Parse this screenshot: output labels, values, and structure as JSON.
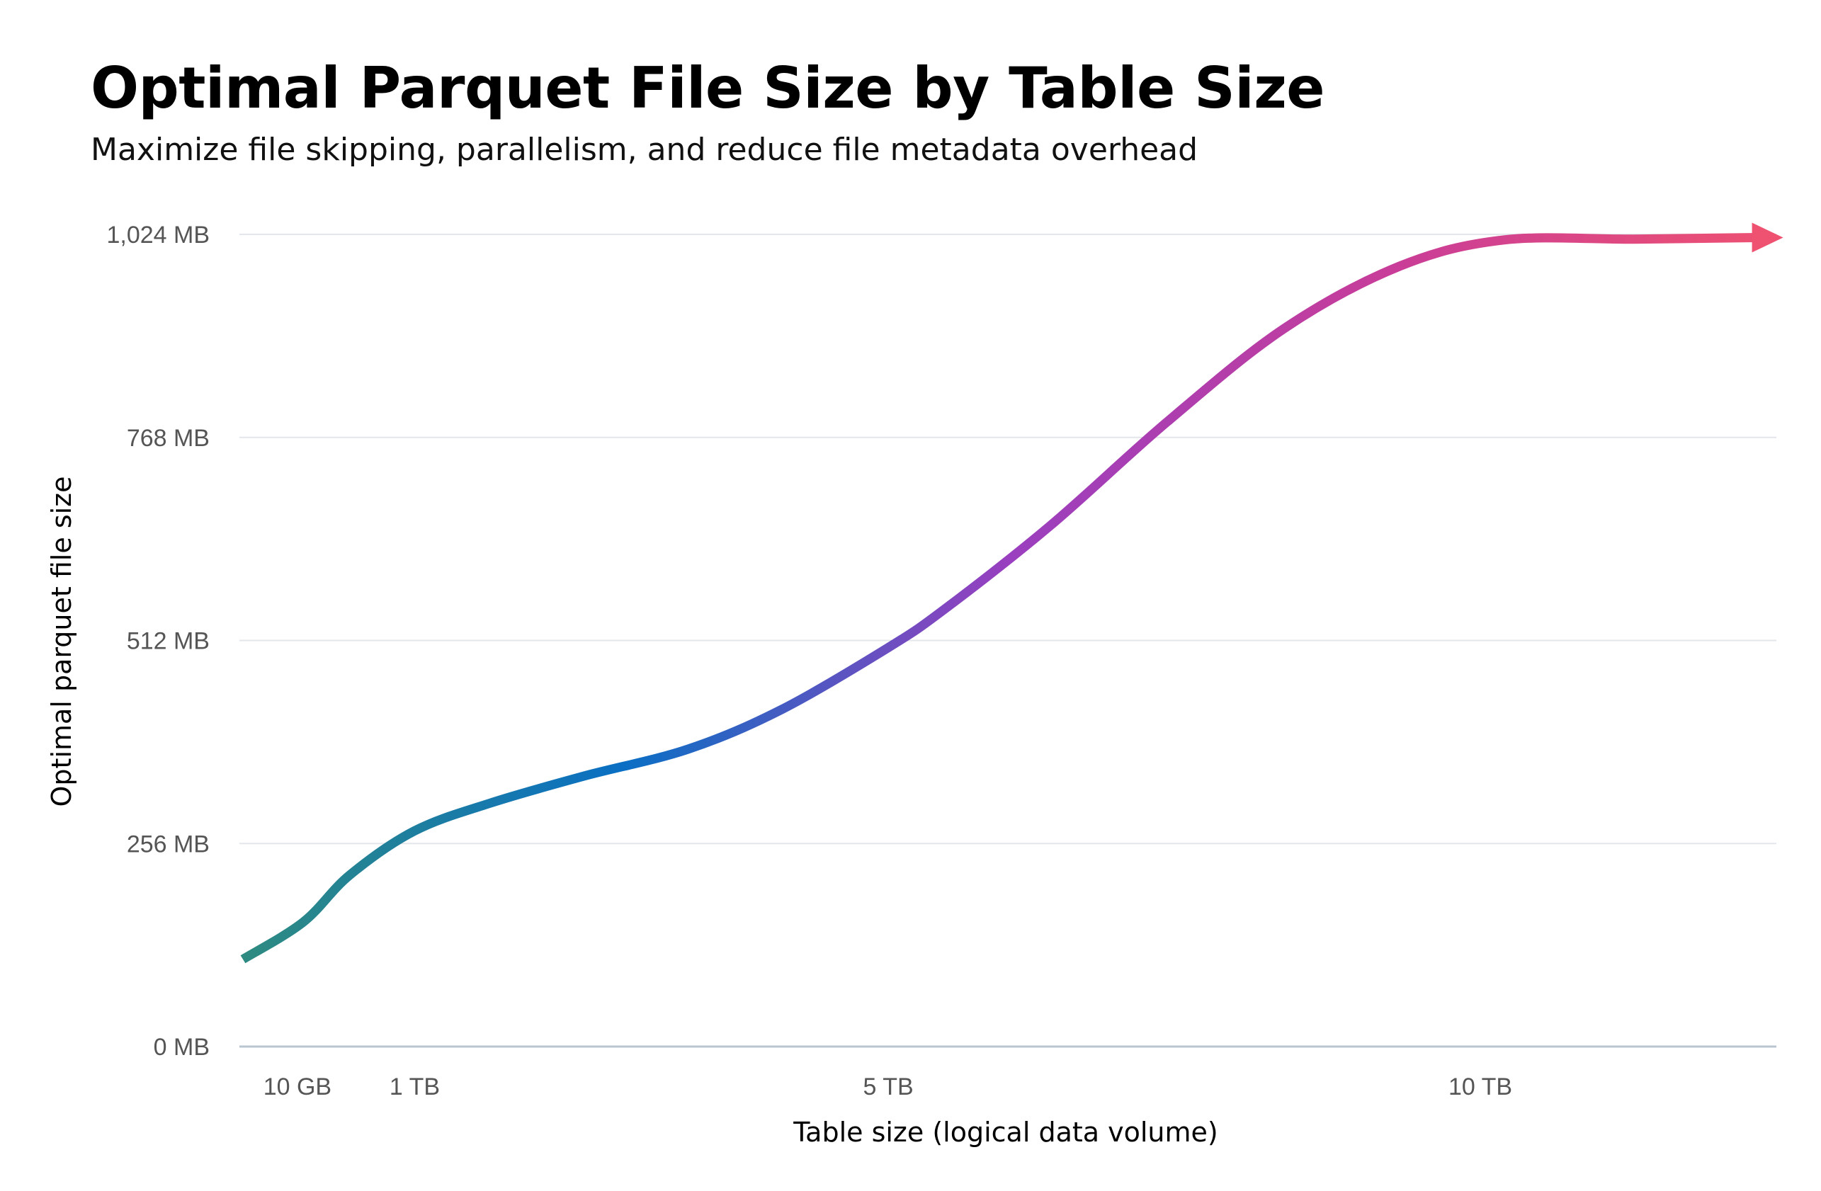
{
  "chart_data": {
    "type": "line",
    "title": "Optimal Parquet File Size by Table Size",
    "subtitle": "Maximize file skipping, parallelism, and reduce file metadata overhead",
    "xlabel": "Table size (logical data volume)",
    "ylabel": "Optimal parquet file size",
    "x_unit": "TB",
    "xlim": [
      -0.48,
      12.5
    ],
    "ylim": [
      0,
      1024
    ],
    "x_ticks": [
      {
        "value": 0.01,
        "label": "10 GB"
      },
      {
        "value": 1,
        "label": "1 TB"
      },
      {
        "value": 5,
        "label": "5 TB"
      },
      {
        "value": 10,
        "label": "10 TB"
      }
    ],
    "y_ticks": [
      {
        "value": 0,
        "label": "0 MB"
      },
      {
        "value": 256,
        "label": "256 MB"
      },
      {
        "value": 512,
        "label": "512 MB"
      },
      {
        "value": 768,
        "label": "768 MB"
      },
      {
        "value": 1024,
        "label": "1,024 MB"
      }
    ],
    "grid": "horizontal",
    "end_marker": "arrow",
    "series": [
      {
        "x": [
          -0.45,
          0.06,
          0.45,
          1.0,
          1.64,
          2.43,
          3.31,
          4.1,
          5.0,
          5.48,
          6.37,
          7.35,
          8.34,
          9.32,
          10.2,
          11.3,
          12.33
        ],
        "y": [
          110,
          157,
          216,
          272,
          307,
          341,
          375,
          425,
          503,
          552,
          657,
          787,
          905,
          984,
          1017,
          1018,
          1020
        ]
      }
    ],
    "gradient_colors": [
      "#2e8b80",
      "#0a6fc4",
      "#9a3fbf",
      "#c93d98",
      "#ef5270"
    ],
    "gridline_color": "#e3e6ea",
    "baseline_color": "#b9c6cf"
  }
}
